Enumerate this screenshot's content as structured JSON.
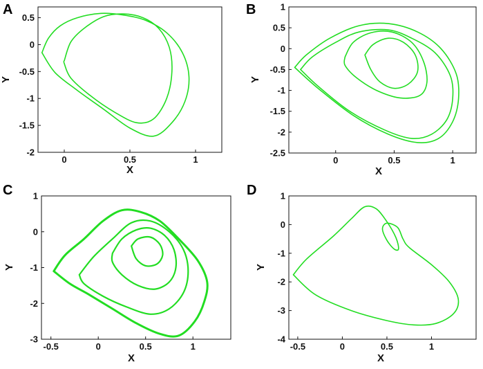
{
  "chart_data": [
    {
      "type": "line",
      "panel_label": "A",
      "xlabel": "X",
      "ylabel": "Y",
      "xlim": [
        -0.2,
        1.2
      ],
      "ylim": [
        -2,
        0.7
      ],
      "xticks": [
        0,
        0.5,
        1
      ],
      "xtick_labels": [
        "0",
        "0.5",
        "1"
      ],
      "yticks": [
        0.5,
        0,
        -0.5,
        -1,
        -1.5,
        -2
      ],
      "ytick_labels": [
        "0.5",
        "0",
        "-0.5",
        "-1",
        "-1.5",
        "-2"
      ],
      "grid": false,
      "color": "#22dd22",
      "series": [
        {
          "x": [
            -0.17,
            -0.12,
            -0.03,
            0.1,
            0.28,
            0.45,
            0.62,
            0.78,
            0.9,
            0.95,
            0.92,
            0.82,
            0.68,
            0.5,
            0.3,
            0.1,
            -0.07,
            -0.17
          ],
          "y": [
            -0.15,
            0.12,
            0.35,
            0.5,
            0.58,
            0.55,
            0.45,
            0.22,
            -0.15,
            -0.6,
            -1.05,
            -1.45,
            -1.7,
            -1.55,
            -1.2,
            -0.85,
            -0.52,
            -0.15
          ]
        },
        {
          "x": [
            0,
            0.05,
            0.15,
            0.3,
            0.45,
            0.6,
            0.72,
            0.8,
            0.82,
            0.78,
            0.68,
            0.55,
            0.38,
            0.2,
            0.05,
            0,
            0
          ],
          "y": [
            -0.3,
            0.05,
            0.3,
            0.52,
            0.57,
            0.5,
            0.3,
            -0.05,
            -0.5,
            -1,
            -1.38,
            -1.45,
            -1.25,
            -0.95,
            -0.62,
            -0.35,
            -0.3
          ]
        }
      ]
    },
    {
      "type": "line",
      "panel_label": "B",
      "xlabel": "X",
      "ylabel": "Y",
      "xlim": [
        -0.4,
        1.2
      ],
      "ylim": [
        -2.5,
        1
      ],
      "xticks": [
        0,
        0.5,
        1
      ],
      "xtick_labels": [
        "0",
        "0.5",
        "1"
      ],
      "yticks": [
        1,
        0.5,
        0,
        -0.5,
        -1,
        -1.5,
        -2,
        -2.5
      ],
      "ytick_labels": [
        "1",
        "0.5",
        "0",
        "-0.5",
        "-1",
        "-1.5",
        "-2",
        "-2.5"
      ],
      "grid": false,
      "color": "#22dd22",
      "series": [
        {
          "x": [
            -0.35,
            -0.25,
            -0.05,
            0.2,
            0.45,
            0.7,
            0.9,
            1.03,
            1.05,
            1,
            0.88,
            0.7,
            0.45,
            0.15,
            -0.15,
            -0.35
          ],
          "y": [
            -0.45,
            -0.15,
            0.25,
            0.55,
            0.6,
            0.4,
            0,
            -0.6,
            -1.2,
            -1.75,
            -2.15,
            -2.25,
            -2.05,
            -1.6,
            -0.95,
            -0.45
          ]
        },
        {
          "x": [
            -0.3,
            -0.2,
            0,
            0.2,
            0.45,
            0.65,
            0.85,
            0.98,
            1,
            0.95,
            0.82,
            0.65,
            0.42,
            0.12,
            -0.15,
            -0.3
          ],
          "y": [
            -0.5,
            -0.2,
            0.15,
            0.4,
            0.45,
            0.25,
            -0.1,
            -0.65,
            -1.2,
            -1.7,
            -2.05,
            -2.15,
            -1.95,
            -1.5,
            -0.9,
            -0.5
          ]
        },
        {
          "x": [
            0.08,
            0.15,
            0.3,
            0.48,
            0.65,
            0.75,
            0.78,
            0.72,
            0.55,
            0.35,
            0.18,
            0.08,
            0.08
          ],
          "y": [
            -0.2,
            0.15,
            0.38,
            0.4,
            0.15,
            -0.3,
            -0.8,
            -1.12,
            -1.18,
            -1,
            -0.7,
            -0.4,
            -0.2
          ]
        },
        {
          "x": [
            0.25,
            0.32,
            0.45,
            0.58,
            0.68,
            0.7,
            0.62,
            0.5,
            0.38,
            0.3,
            0.25
          ],
          "y": [
            -0.15,
            0.1,
            0.25,
            0.15,
            -0.15,
            -0.55,
            -0.85,
            -0.95,
            -0.8,
            -0.5,
            -0.15
          ]
        }
      ]
    },
    {
      "type": "line",
      "panel_label": "C",
      "xlabel": "X",
      "ylabel": "Y",
      "xlim": [
        -0.6,
        1.4
      ],
      "ylim": [
        -3,
        1
      ],
      "xticks": [
        -0.5,
        0,
        0.5,
        1
      ],
      "xtick_labels": [
        "-0.5",
        "0",
        "0.5",
        "1"
      ],
      "yticks": [
        1,
        0,
        -1,
        -2,
        -3
      ],
      "ytick_labels": [
        "1",
        "0",
        "-1",
        "-2",
        "-3"
      ],
      "grid": false,
      "color": "#22dd22",
      "series": [
        {
          "x": [
            -0.47,
            -0.35,
            -0.15,
            0.05,
            0.25,
            0.45,
            0.65,
            0.85,
            1.05,
            1.15,
            1.12,
            1.02,
            0.85,
            0.65,
            0.4,
            0.15,
            -0.1,
            -0.3,
            -0.47
          ],
          "y": [
            -1.1,
            -0.65,
            -0.2,
            0.3,
            0.6,
            0.55,
            0.3,
            -0.2,
            -0.8,
            -1.4,
            -1.95,
            -2.5,
            -2.9,
            -2.85,
            -2.55,
            -2.15,
            -1.75,
            -1.45,
            -1.1
          ]
        },
        {
          "x": [
            -0.2,
            -0.05,
            0.15,
            0.35,
            0.55,
            0.75,
            0.9,
            0.95,
            0.9,
            0.75,
            0.55,
            0.3,
            0.05,
            -0.15,
            -0.2
          ],
          "y": [
            -1.2,
            -0.7,
            -0.2,
            0.25,
            0.3,
            0,
            -0.5,
            -1.1,
            -1.7,
            -2.15,
            -2.3,
            -2.1,
            -1.8,
            -1.45,
            -1.2
          ]
        },
        {
          "x": [
            0.15,
            0.25,
            0.4,
            0.55,
            0.7,
            0.8,
            0.82,
            0.75,
            0.6,
            0.42,
            0.25,
            0.15,
            0.15
          ],
          "y": [
            -0.6,
            -0.2,
            0.05,
            0.1,
            -0.1,
            -0.5,
            -1,
            -1.4,
            -1.6,
            -1.5,
            -1.2,
            -0.85,
            -0.6
          ]
        },
        {
          "x": [
            0.35,
            0.42,
            0.55,
            0.65,
            0.68,
            0.62,
            0.5,
            0.4,
            0.35
          ],
          "y": [
            -0.4,
            -0.2,
            -0.15,
            -0.35,
            -0.65,
            -0.9,
            -0.95,
            -0.75,
            -0.4
          ]
        }
      ]
    },
    {
      "type": "line",
      "panel_label": "D",
      "xlabel": "X",
      "ylabel": "Y",
      "xlim": [
        -0.6,
        1.5
      ],
      "ylim": [
        -4,
        1
      ],
      "xticks": [
        -0.5,
        0,
        0.5,
        1
      ],
      "xtick_labels": [
        "-0.5",
        "0",
        "0.5",
        "1"
      ],
      "yticks": [
        1,
        0,
        -1,
        -2,
        -3,
        -4
      ],
      "ytick_labels": [
        "1",
        "0",
        "-1",
        "-2",
        "-3",
        "-4"
      ],
      "grid": false,
      "color": "#22dd22",
      "series": [
        {
          "x": [
            -0.55,
            -0.4,
            -0.1,
            0.1,
            0.25,
            0.38,
            0.5,
            0.6,
            0.63,
            0.58,
            0.5,
            0.45,
            0.5,
            0.62,
            0.68,
            0.75,
            1,
            1.2,
            1.3,
            1.25,
            1.05,
            0.8,
            0.5,
            0.1,
            -0.3,
            -0.55
          ],
          "y": [
            -1.75,
            -1.2,
            -0.4,
            0.2,
            0.62,
            0.55,
            0.1,
            -0.45,
            -0.85,
            -0.85,
            -0.55,
            -0.15,
            0.05,
            -0.1,
            -0.5,
            -0.8,
            -1.4,
            -2,
            -2.6,
            -3.1,
            -3.45,
            -3.5,
            -3.35,
            -3,
            -2.45,
            -1.75
          ]
        }
      ]
    }
  ]
}
